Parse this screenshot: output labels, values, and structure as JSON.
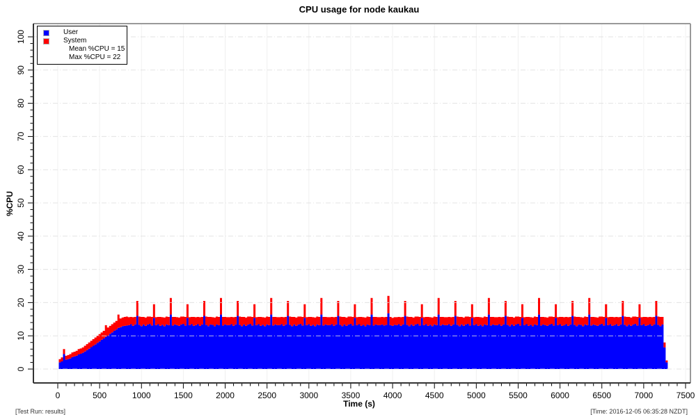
{
  "footer": {
    "left": "[Test Run: results]",
    "right": "[Time: 2016-12-05 06:35:28 NZDT]"
  },
  "legend": {
    "position": "top-left",
    "stats": [
      "Mean %CPU = 15",
      "Max %CPU = 22"
    ]
  },
  "colors": {
    "user_fill": "#0000ff",
    "system_fill": "#ff0000",
    "grid_minor_vertical": "#f0f0f0",
    "grid_major_horizontal": "rgba(222,222,222,0.85)",
    "frame_light": "#999999",
    "frame_dark": "#333333",
    "tick": "#000000"
  },
  "chart_data": {
    "type": "area",
    "stacked": true,
    "title": "CPU usage for node kaukau",
    "xlabel": "Time (s)",
    "ylabel": "%CPU",
    "xlim": [
      0,
      7500
    ],
    "ylim": [
      0,
      100
    ],
    "x_tick_step": 500,
    "x_minor_step": 100,
    "y_tick_step": 10,
    "y_minor_step": 2,
    "grid": true,
    "legend_position": "top-left",
    "mean_pct_cpu": 15,
    "max_pct_cpu": 22,
    "t_start": 25,
    "t_step": 25,
    "series": [
      {
        "name": "User",
        "color": "#0000ff",
        "values": [
          2.0,
          2.3,
          4.5,
          2.8,
          3.0,
          3.2,
          3.6,
          3.8,
          4.0,
          4.4,
          4.6,
          4.9,
          5.3,
          5.7,
          6.1,
          6.6,
          7.0,
          7.4,
          7.9,
          8.3,
          8.8,
          9.2,
          9.7,
          10.1,
          10.6,
          11.0,
          11.5,
          11.9,
          12.4,
          12.6,
          12.9,
          13.0,
          13.1,
          13.2,
          13.5,
          13.0,
          13.4,
          16.0,
          13.3,
          12.9,
          13.4,
          13.0,
          13.4,
          13.6,
          13.1,
          15.4,
          13.2,
          13.5,
          13.0,
          13.3,
          12.9,
          13.4,
          13.2,
          16.4,
          13.1,
          13.4,
          13.2,
          13.0,
          13.4,
          13.6,
          13.1,
          15.4,
          13.2,
          13.5,
          13.0,
          13.2,
          13.5,
          13.0,
          13.4,
          16.0,
          13.3,
          12.9,
          13.4,
          13.3,
          12.9,
          13.4,
          13.2,
          16.4,
          13.1,
          13.4,
          13.2,
          13.2,
          13.5,
          13.0,
          13.4,
          16.0,
          13.3,
          12.9,
          13.4,
          13.0,
          13.4,
          13.6,
          13.1,
          15.4,
          13.2,
          13.5,
          13.0,
          13.3,
          12.9,
          13.4,
          13.2,
          16.4,
          13.1,
          13.4,
          13.2,
          13.2,
          13.5,
          13.0,
          13.4,
          16.0,
          13.3,
          12.9,
          13.4,
          13.0,
          13.4,
          13.6,
          13.1,
          15.4,
          13.2,
          13.5,
          13.0,
          13.3,
          12.9,
          13.4,
          13.2,
          16.4,
          13.1,
          13.4,
          13.2,
          13.2,
          13.5,
          13.0,
          13.4,
          16.0,
          13.3,
          12.9,
          13.4,
          13.0,
          13.4,
          13.6,
          13.1,
          15.4,
          13.2,
          13.5,
          13.0,
          13.3,
          12.9,
          13.4,
          13.2,
          16.4,
          13.1,
          13.4,
          13.2,
          13.2,
          13.4,
          13.1,
          13.3,
          16.8,
          13.2,
          13.0,
          13.3,
          13.2,
          13.5,
          13.0,
          13.4,
          16.0,
          13.3,
          12.9,
          13.4,
          13.0,
          13.4,
          13.6,
          13.1,
          15.4,
          13.2,
          13.5,
          13.0,
          13.3,
          12.9,
          13.4,
          13.2,
          16.4,
          13.1,
          13.4,
          13.2,
          13.2,
          13.5,
          13.0,
          13.4,
          16.0,
          13.3,
          12.9,
          13.4,
          13.0,
          13.4,
          13.6,
          13.1,
          15.4,
          13.2,
          13.5,
          13.0,
          13.3,
          12.9,
          13.4,
          13.2,
          16.4,
          13.1,
          13.4,
          13.2,
          13.2,
          13.5,
          13.0,
          13.4,
          16.0,
          13.3,
          12.9,
          13.4,
          13.0,
          13.4,
          13.6,
          13.1,
          15.4,
          13.2,
          13.5,
          13.0,
          13.3,
          12.9,
          13.4,
          13.2,
          16.4,
          13.1,
          13.4,
          13.2,
          13.0,
          13.4,
          13.6,
          13.1,
          15.4,
          13.2,
          13.5,
          13.0,
          13.2,
          13.5,
          13.0,
          13.4,
          16.0,
          13.3,
          12.9,
          13.4,
          13.3,
          12.9,
          13.4,
          13.2,
          16.4,
          13.1,
          13.4,
          13.2,
          13.0,
          13.4,
          13.6,
          13.1,
          15.4,
          13.2,
          13.5,
          13.0,
          13.2,
          13.5,
          13.0,
          13.4,
          16.0,
          13.3,
          12.9,
          13.4,
          13.0,
          13.4,
          13.6,
          13.1,
          15.4,
          13.2,
          13.5,
          13.0,
          13.2,
          13.5,
          13.0,
          13.4,
          16.0,
          13.3,
          12.9,
          13.4,
          6.5,
          2.0
        ]
      },
      {
        "name": "System",
        "color": "#ff0000",
        "values": [
          1.0,
          1.2,
          1.5,
          1.2,
          1.2,
          1.3,
          1.4,
          1.4,
          1.5,
          1.6,
          1.6,
          1.6,
          1.7,
          1.8,
          1.9,
          1.9,
          2.0,
          2.1,
          2.1,
          2.2,
          2.2,
          2.3,
          3.5,
          2.4,
          2.4,
          2.5,
          2.5,
          2.6,
          4.0,
          2.6,
          2.6,
          2.7,
          2.7,
          2.4,
          2.2,
          2.6,
          2.3,
          4.5,
          2.5,
          2.8,
          2.3,
          2.5,
          2.4,
          2.2,
          2.6,
          4.1,
          2.4,
          2.2,
          2.7,
          2.3,
          2.6,
          2.4,
          2.5,
          5.0,
          2.6,
          2.3,
          2.4,
          2.5,
          2.4,
          2.2,
          2.6,
          4.1,
          2.4,
          2.2,
          2.7,
          2.4,
          2.2,
          2.6,
          2.3,
          4.5,
          2.5,
          2.8,
          2.3,
          2.3,
          2.6,
          2.4,
          2.5,
          5.0,
          2.6,
          2.3,
          2.4,
          2.4,
          2.2,
          2.6,
          2.3,
          4.5,
          2.5,
          2.8,
          2.3,
          2.5,
          2.4,
          2.2,
          2.6,
          4.1,
          2.4,
          2.2,
          2.7,
          2.3,
          2.6,
          2.4,
          2.5,
          5.0,
          2.6,
          2.3,
          2.4,
          2.4,
          2.2,
          2.6,
          2.3,
          4.5,
          2.5,
          2.8,
          2.3,
          2.5,
          2.4,
          2.2,
          2.6,
          4.1,
          2.4,
          2.2,
          2.7,
          2.3,
          2.6,
          2.4,
          2.5,
          5.0,
          2.6,
          2.3,
          2.4,
          2.4,
          2.2,
          2.6,
          2.3,
          4.5,
          2.5,
          2.8,
          2.3,
          2.5,
          2.4,
          2.2,
          2.6,
          4.1,
          2.4,
          2.2,
          2.7,
          2.3,
          2.6,
          2.4,
          2.5,
          5.0,
          2.6,
          2.3,
          2.4,
          2.4,
          2.3,
          2.5,
          2.4,
          5.2,
          2.5,
          2.4,
          2.3,
          2.4,
          2.2,
          2.6,
          2.3,
          4.5,
          2.5,
          2.8,
          2.3,
          2.5,
          2.4,
          2.2,
          2.6,
          4.1,
          2.4,
          2.2,
          2.7,
          2.3,
          2.6,
          2.4,
          2.5,
          5.0,
          2.6,
          2.3,
          2.4,
          2.4,
          2.2,
          2.6,
          2.3,
          4.5,
          2.5,
          2.8,
          2.3,
          2.5,
          2.4,
          2.2,
          2.6,
          4.1,
          2.4,
          2.2,
          2.7,
          2.3,
          2.6,
          2.4,
          2.5,
          5.0,
          2.6,
          2.3,
          2.4,
          2.4,
          2.2,
          2.6,
          2.3,
          4.5,
          2.5,
          2.8,
          2.3,
          2.5,
          2.4,
          2.2,
          2.6,
          4.1,
          2.4,
          2.2,
          2.7,
          2.3,
          2.6,
          2.4,
          2.5,
          5.0,
          2.6,
          2.3,
          2.4,
          2.5,
          2.4,
          2.2,
          2.6,
          4.1,
          2.4,
          2.2,
          2.7,
          2.4,
          2.2,
          2.6,
          2.3,
          4.5,
          2.5,
          2.8,
          2.3,
          2.3,
          2.6,
          2.4,
          2.5,
          5.0,
          2.6,
          2.3,
          2.4,
          2.5,
          2.4,
          2.2,
          2.6,
          4.1,
          2.4,
          2.2,
          2.7,
          2.4,
          2.2,
          2.6,
          2.3,
          4.5,
          2.5,
          2.8,
          2.3,
          2.5,
          2.4,
          2.2,
          2.6,
          4.1,
          2.4,
          2.2,
          2.7,
          2.4,
          2.2,
          2.6,
          2.3,
          4.5,
          2.5,
          2.8,
          2.3,
          1.5,
          0.6
        ]
      }
    ]
  }
}
